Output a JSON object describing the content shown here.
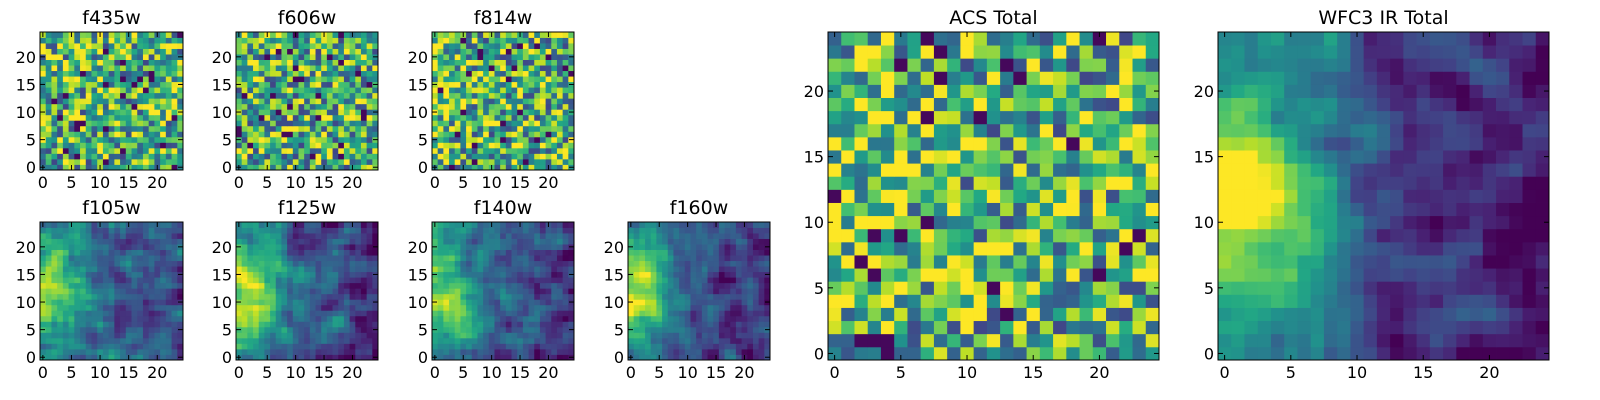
{
  "figure": {
    "description": "Grid of 2D images (25x25 pixels, viridis colormap) for individual HST filters and total stacks",
    "colormap": "viridis",
    "grid_size": 25
  },
  "chart_data": [
    {
      "type": "heatmap",
      "title": "f435w",
      "xlim": [
        0,
        24
      ],
      "ylim": [
        0,
        24
      ],
      "xticks": [
        0,
        5,
        10,
        15,
        20
      ],
      "yticks": [
        0,
        5,
        10,
        15,
        20
      ],
      "pattern": "noise",
      "gradient": 0.0,
      "seed": 11
    },
    {
      "type": "heatmap",
      "title": "f606w",
      "xlim": [
        0,
        24
      ],
      "ylim": [
        0,
        24
      ],
      "xticks": [
        0,
        5,
        10,
        15,
        20
      ],
      "yticks": [
        0,
        5,
        10,
        15,
        20
      ],
      "pattern": "noise",
      "gradient": 0.0,
      "seed": 23
    },
    {
      "type": "heatmap",
      "title": "f814w",
      "xlim": [
        0,
        24
      ],
      "ylim": [
        0,
        24
      ],
      "xticks": [
        0,
        5,
        10,
        15,
        20
      ],
      "yticks": [
        0,
        5,
        10,
        15,
        20
      ],
      "pattern": "noise",
      "gradient": 0.15,
      "seed": 37
    },
    {
      "type": "heatmap",
      "title": "f105w",
      "xlim": [
        0,
        24
      ],
      "ylim": [
        0,
        24
      ],
      "xticks": [
        0,
        5,
        10,
        15,
        20
      ],
      "yticks": [
        0,
        5,
        10,
        15,
        20
      ],
      "pattern": "smooth",
      "gradient": 0.55,
      "seed": 41
    },
    {
      "type": "heatmap",
      "title": "f125w",
      "xlim": [
        0,
        24
      ],
      "ylim": [
        0,
        24
      ],
      "xticks": [
        0,
        5,
        10,
        15,
        20
      ],
      "yticks": [
        0,
        5,
        10,
        15,
        20
      ],
      "pattern": "smooth",
      "gradient": 0.55,
      "seed": 53
    },
    {
      "type": "heatmap",
      "title": "f140w",
      "xlim": [
        0,
        24
      ],
      "ylim": [
        0,
        24
      ],
      "xticks": [
        0,
        5,
        10,
        15,
        20
      ],
      "yticks": [
        0,
        5,
        10,
        15,
        20
      ],
      "pattern": "smooth",
      "gradient": 0.6,
      "seed": 67
    },
    {
      "type": "heatmap",
      "title": "f160w",
      "xlim": [
        0,
        24
      ],
      "ylim": [
        0,
        24
      ],
      "xticks": [
        0,
        5,
        10,
        15,
        20
      ],
      "yticks": [
        0,
        5,
        10,
        15,
        20
      ],
      "pattern": "smooth",
      "gradient": 0.7,
      "seed": 79
    },
    {
      "type": "heatmap",
      "title": "ACS Total",
      "xlim": [
        0,
        24
      ],
      "ylim": [
        0,
        24
      ],
      "xticks": [
        0,
        5,
        10,
        15,
        20
      ],
      "yticks": [
        0,
        5,
        10,
        15,
        20
      ],
      "pattern": "noise",
      "gradient": 0.25,
      "seed": 97
    },
    {
      "type": "heatmap",
      "title": "WFC3 IR Total",
      "xlim": [
        0,
        24
      ],
      "ylim": [
        0,
        24
      ],
      "xticks": [
        0,
        5,
        10,
        15,
        20
      ],
      "yticks": [
        0,
        5,
        10,
        15,
        20
      ],
      "pattern": "smooth",
      "gradient": 0.8,
      "seed": 101
    }
  ]
}
